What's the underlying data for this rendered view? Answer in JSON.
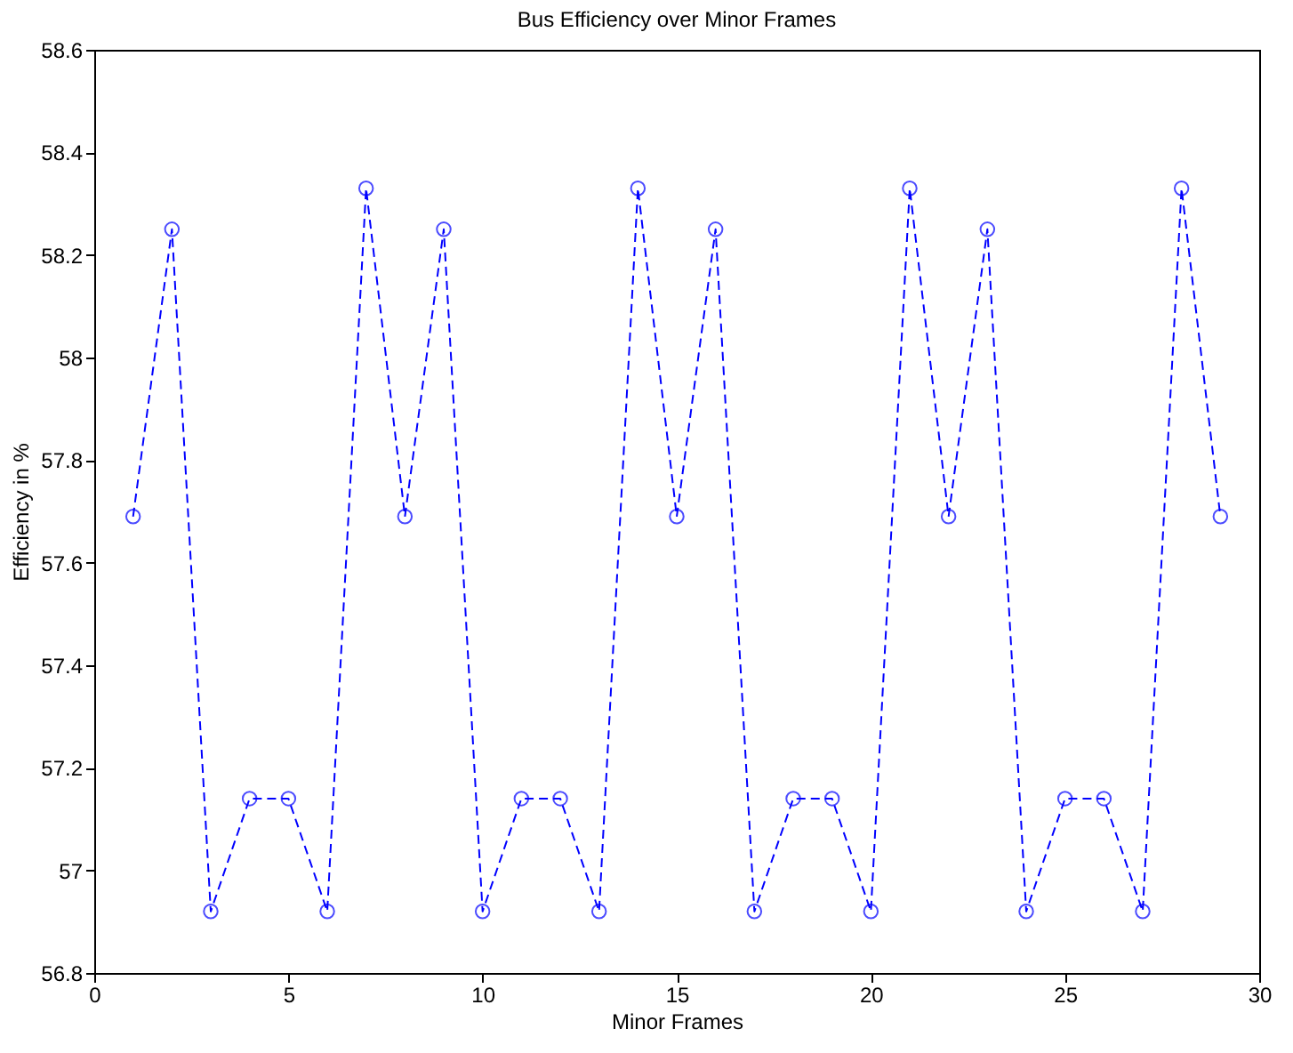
{
  "chart_data": {
    "type": "line",
    "title": "Bus Efficiency over Minor Frames",
    "xlabel": "Minor Frames",
    "ylabel": "Efficiency in %",
    "x": [
      1,
      2,
      3,
      4,
      5,
      6,
      7,
      8,
      9,
      10,
      11,
      12,
      13,
      14,
      15,
      16,
      17,
      18,
      19,
      20,
      21,
      22,
      23,
      24,
      25,
      26,
      27,
      28,
      29
    ],
    "series": [
      {
        "color": "#0000ff",
        "values": [
          57.69,
          58.25,
          56.92,
          57.14,
          57.14,
          56.92,
          58.33,
          57.69,
          58.25,
          56.92,
          57.14,
          57.14,
          56.92,
          58.33,
          57.69,
          58.25,
          56.92,
          57.14,
          57.14,
          56.92,
          58.33,
          57.69,
          58.25,
          56.92,
          57.14,
          57.14,
          56.92,
          58.33,
          57.69
        ]
      }
    ],
    "xlim": [
      0,
      30
    ],
    "xticks": [
      0,
      5,
      10,
      15,
      20,
      25,
      30
    ],
    "ylim": [
      56.8,
      58.6
    ],
    "yticks": [
      56.8,
      57,
      57.2,
      57.4,
      57.6,
      57.8,
      58,
      58.2,
      58.4,
      58.6
    ],
    "grid": false,
    "marker": "circle",
    "line_style": "dashed"
  }
}
